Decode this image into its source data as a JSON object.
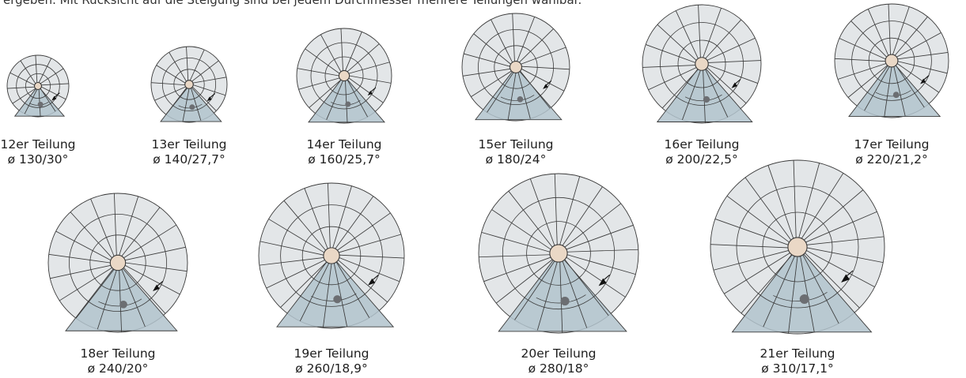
{
  "intro_text": "ergeben. Mit Rücksicht auf die Steigung sind bei jedem Durchmesser mehrere Teilungen wählbar.",
  "colors": {
    "step_fill": "#e3e6e8",
    "line": "#3a3a3a",
    "wedge_fill": "#b1c3cc",
    "post_fill": "#ead8c6",
    "dot": "#6c6e72",
    "arrow": "#111111"
  },
  "items": [
    {
      "label": "12er Teilung",
      "spec": "ø 130/30°",
      "steps": 12,
      "diameter": 130,
      "angle": 30
    },
    {
      "label": "13er Teilung",
      "spec": "ø 140/27,7°",
      "steps": 13,
      "diameter": 140,
      "angle": 27.7
    },
    {
      "label": "14er Teilung",
      "spec": "ø 160/25,7°",
      "steps": 14,
      "diameter": 160,
      "angle": 25.7
    },
    {
      "label": "15er Teilung",
      "spec": "ø 180/24°",
      "steps": 15,
      "diameter": 180,
      "angle": 24
    },
    {
      "label": "16er Teilung",
      "spec": "ø 200/22,5°",
      "steps": 16,
      "diameter": 200,
      "angle": 22.5
    },
    {
      "label": "17er Teilung",
      "spec": "ø 220/21,2°",
      "steps": 17,
      "diameter": 220,
      "angle": 21.2
    },
    {
      "label": "18er Teilung",
      "spec": "ø 240/20°",
      "steps": 18,
      "diameter": 240,
      "angle": 20
    },
    {
      "label": "19er Teilung",
      "spec": "ø 260/18,9°",
      "steps": 19,
      "diameter": 260,
      "angle": 18.9
    },
    {
      "label": "20er Teilung",
      "spec": "ø 280/18°",
      "steps": 20,
      "diameter": 280,
      "angle": 18
    },
    {
      "label": "21er Teilung",
      "spec": "ø 310/17,1°",
      "steps": 21,
      "diameter": 310,
      "angle": 17.1
    }
  ]
}
